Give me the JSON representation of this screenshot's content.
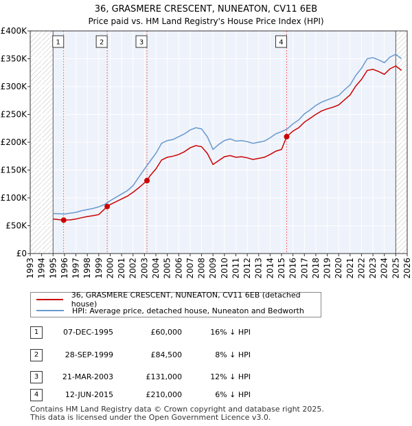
{
  "chart_data": {
    "type": "line",
    "title": "36, GRASMERE CRESCENT, NUNEATON, CV11 6EB",
    "subtitle": "Price paid vs. HM Land Registry's House Price Index (HPI)",
    "xlim": [
      1993,
      2026
    ],
    "ylim": [
      0,
      400000
    ],
    "yticks": [
      0,
      50000,
      100000,
      150000,
      200000,
      250000,
      300000,
      350000,
      400000
    ],
    "ytick_labels": [
      "£0",
      "£50K",
      "£100K",
      "£150K",
      "£200K",
      "£250K",
      "£300K",
      "£350K",
      "£400K"
    ],
    "xticks": [
      "1993",
      "1994",
      "1995",
      "1996",
      "1997",
      "1998",
      "1999",
      "2000",
      "2001",
      "2002",
      "2003",
      "2004",
      "2005",
      "2006",
      "2007",
      "2008",
      "2009",
      "2010",
      "2011",
      "2012",
      "2013",
      "2014",
      "2015",
      "2016",
      "2017",
      "2018",
      "2019",
      "2020",
      "2021",
      "2022",
      "2023",
      "2024",
      "2025",
      "2026"
    ],
    "hatched_regions": [
      [
        1993,
        1995.0
      ],
      [
        2025.0,
        2026
      ]
    ],
    "series": [
      {
        "name": "HPI: Average price, detached house, Nuneaton and Bedworth",
        "color": "#6699cc",
        "points": [
          [
            1995.0,
            72000
          ],
          [
            1995.5,
            71500
          ],
          [
            1996.0,
            71000
          ],
          [
            1996.5,
            72500
          ],
          [
            1997.0,
            74000
          ],
          [
            1997.5,
            77000
          ],
          [
            1998.0,
            79000
          ],
          [
            1998.5,
            81000
          ],
          [
            1999.0,
            84000
          ],
          [
            1999.5,
            88000
          ],
          [
            2000.0,
            95000
          ],
          [
            2000.5,
            101000
          ],
          [
            2001.0,
            107000
          ],
          [
            2001.5,
            113000
          ],
          [
            2002.0,
            122000
          ],
          [
            2002.5,
            137000
          ],
          [
            2003.0,
            152000
          ],
          [
            2003.5,
            166000
          ],
          [
            2004.0,
            180000
          ],
          [
            2004.5,
            198000
          ],
          [
            2005.0,
            203000
          ],
          [
            2005.5,
            205000
          ],
          [
            2006.0,
            210000
          ],
          [
            2006.5,
            215000
          ],
          [
            2007.0,
            222000
          ],
          [
            2007.5,
            226000
          ],
          [
            2008.0,
            224000
          ],
          [
            2008.5,
            210000
          ],
          [
            2009.0,
            187000
          ],
          [
            2009.5,
            196000
          ],
          [
            2010.0,
            203000
          ],
          [
            2010.5,
            206000
          ],
          [
            2011.0,
            202000
          ],
          [
            2011.5,
            203000
          ],
          [
            2012.0,
            201000
          ],
          [
            2012.5,
            198000
          ],
          [
            2013.0,
            200000
          ],
          [
            2013.5,
            202000
          ],
          [
            2014.0,
            208000
          ],
          [
            2014.5,
            215000
          ],
          [
            2015.0,
            219000
          ],
          [
            2015.5,
            224000
          ],
          [
            2016.0,
            233000
          ],
          [
            2016.5,
            240000
          ],
          [
            2017.0,
            251000
          ],
          [
            2017.5,
            258000
          ],
          [
            2018.0,
            266000
          ],
          [
            2018.5,
            272000
          ],
          [
            2019.0,
            276000
          ],
          [
            2019.5,
            280000
          ],
          [
            2020.0,
            284000
          ],
          [
            2020.5,
            294000
          ],
          [
            2021.0,
            303000
          ],
          [
            2021.5,
            320000
          ],
          [
            2022.0,
            333000
          ],
          [
            2022.5,
            350000
          ],
          [
            2023.0,
            352000
          ],
          [
            2023.5,
            348000
          ],
          [
            2024.0,
            343000
          ],
          [
            2024.5,
            353000
          ],
          [
            2025.0,
            358000
          ],
          [
            2025.5,
            350000
          ]
        ]
      },
      {
        "name": "36, GRASMERE CRESCENT, NUNEATON, CV11 6EB (detached house)",
        "color": "#cc0000",
        "points": [
          [
            1995.0,
            62000
          ],
          [
            1995.93,
            60000
          ],
          [
            1996.5,
            60500
          ],
          [
            1997.0,
            62000
          ],
          [
            1997.5,
            64500
          ],
          [
            1998.0,
            66500
          ],
          [
            1998.5,
            68000
          ],
          [
            1999.0,
            70000
          ],
          [
            1999.74,
            84500
          ],
          [
            2000.0,
            88000
          ],
          [
            2000.5,
            93000
          ],
          [
            2001.0,
            98000
          ],
          [
            2001.5,
            103000
          ],
          [
            2002.0,
            110000
          ],
          [
            2002.5,
            118000
          ],
          [
            2003.22,
            131000
          ],
          [
            2003.5,
            140000
          ],
          [
            2004.0,
            152000
          ],
          [
            2004.5,
            168000
          ],
          [
            2005.0,
            173000
          ],
          [
            2005.5,
            175000
          ],
          [
            2006.0,
            178000
          ],
          [
            2006.5,
            183000
          ],
          [
            2007.0,
            190000
          ],
          [
            2007.5,
            194000
          ],
          [
            2008.0,
            192000
          ],
          [
            2008.5,
            180000
          ],
          [
            2009.0,
            160000
          ],
          [
            2009.5,
            167000
          ],
          [
            2010.0,
            174000
          ],
          [
            2010.5,
            176000
          ],
          [
            2011.0,
            173000
          ],
          [
            2011.5,
            174000
          ],
          [
            2012.0,
            172000
          ],
          [
            2012.5,
            169000
          ],
          [
            2013.0,
            171000
          ],
          [
            2013.5,
            173000
          ],
          [
            2014.0,
            178000
          ],
          [
            2014.5,
            184000
          ],
          [
            2015.0,
            187000
          ],
          [
            2015.45,
            210000
          ],
          [
            2016.0,
            220000
          ],
          [
            2016.5,
            226000
          ],
          [
            2017.0,
            236000
          ],
          [
            2017.5,
            243000
          ],
          [
            2018.0,
            250000
          ],
          [
            2018.5,
            256000
          ],
          [
            2019.0,
            260000
          ],
          [
            2019.5,
            263000
          ],
          [
            2020.0,
            267000
          ],
          [
            2020.5,
            276000
          ],
          [
            2021.0,
            285000
          ],
          [
            2021.5,
            301000
          ],
          [
            2022.0,
            313000
          ],
          [
            2022.5,
            329000
          ],
          [
            2023.0,
            331000
          ],
          [
            2023.5,
            327000
          ],
          [
            2024.0,
            322000
          ],
          [
            2024.5,
            332000
          ],
          [
            2025.0,
            337000
          ],
          [
            2025.5,
            329000
          ]
        ]
      }
    ],
    "sale_markers": [
      {
        "label": "1",
        "x": 1995.93,
        "y": 60000
      },
      {
        "label": "2",
        "x": 1999.74,
        "y": 84500
      },
      {
        "label": "3",
        "x": 2003.22,
        "y": 131000
      },
      {
        "label": "4",
        "x": 2015.45,
        "y": 210000
      }
    ]
  },
  "legend": {
    "property_label": "36, GRASMERE CRESCENT, NUNEATON, CV11 6EB (detached house)",
    "hpi_label": "HPI: Average price, detached house, Nuneaton and Bedworth"
  },
  "sales": [
    {
      "num": "1",
      "date": "07-DEC-1995",
      "price": "£60,000",
      "pct": "16% ↓ HPI"
    },
    {
      "num": "2",
      "date": "28-SEP-1999",
      "price": "£84,500",
      "pct": "8% ↓ HPI"
    },
    {
      "num": "3",
      "date": "21-MAR-2003",
      "price": "£131,000",
      "pct": "12% ↓ HPI"
    },
    {
      "num": "4",
      "date": "12-JUN-2015",
      "price": "£210,000",
      "pct": "6% ↓ HPI"
    }
  ],
  "footer": {
    "line1": "Contains HM Land Registry data © Crown copyright and database right 2025.",
    "line2": "This data is licensed under the Open Government Licence v3.0."
  }
}
